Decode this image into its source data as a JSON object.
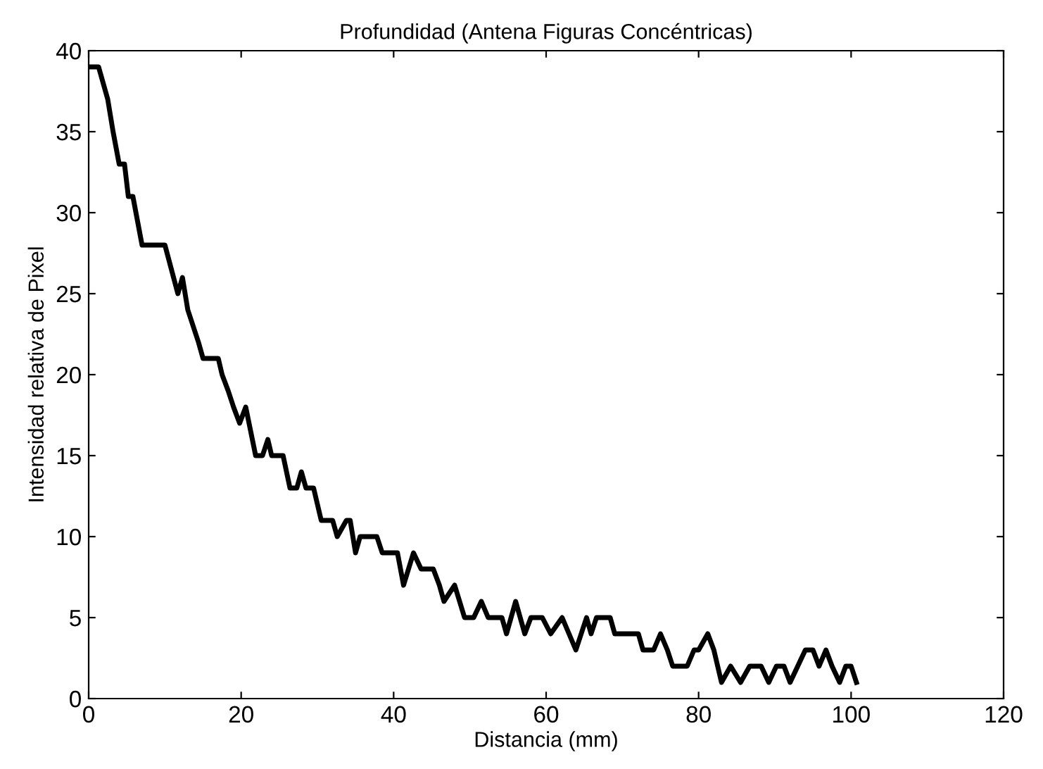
{
  "chart_data": {
    "type": "line",
    "title": "Profundidad (Antena Figuras Concéntricas)",
    "xlabel": "Distancia (mm)",
    "ylabel": "Intensidad relativa de Pixel",
    "series": [
      {
        "color": "#000000",
        "x": [
          0.4,
          1.3,
          1.9,
          2.5,
          3.2,
          4.0,
          4.7,
          5.2,
          5.8,
          7.0,
          10.0,
          11.7,
          12.3,
          13.0,
          14.4,
          15.0,
          17.0,
          17.5,
          18.3,
          19.0,
          19.8,
          20.6,
          21.9,
          22.8,
          23.5,
          24.0,
          25.5,
          26.4,
          27.3,
          27.9,
          28.5,
          29.5,
          30.5,
          32.0,
          32.6,
          33.8,
          34.3,
          35.0,
          35.6,
          37.8,
          38.5,
          40.5,
          41.3,
          42.6,
          43.6,
          45.2,
          46.0,
          46.6,
          48.0,
          49.3,
          50.5,
          51.5,
          52.4,
          54.2,
          54.8,
          56.0,
          57.2,
          58.0,
          59.5,
          60.6,
          62.1,
          63.0,
          63.9,
          65.3,
          65.9,
          66.6,
          68.4,
          69.0,
          72.1,
          72.7,
          74.1,
          75.0,
          75.9,
          76.6,
          78.5,
          79.4,
          80.0,
          81.2,
          82.0,
          83.0,
          84.2,
          85.5,
          86.7,
          88.2,
          89.2,
          90.2,
          91.2,
          92.0,
          93.0,
          94.0,
          95.0,
          95.8,
          96.7,
          97.5,
          98.5,
          99.3,
          100.0,
          100.7
        ],
        "values": [
          39,
          39,
          38,
          37,
          35,
          33,
          33,
          31,
          31,
          28,
          28,
          25,
          26,
          24,
          22,
          21,
          21,
          20,
          19,
          18,
          17,
          18,
          15,
          15,
          16,
          15,
          15,
          13,
          13,
          14,
          13,
          13,
          11,
          11,
          10,
          11,
          11,
          9,
          10,
          10,
          9,
          9,
          7,
          9,
          8,
          8,
          7,
          6,
          7,
          5,
          5,
          6,
          5,
          5,
          4,
          6,
          4,
          5,
          5,
          4,
          5,
          4,
          3,
          5,
          4,
          5,
          5,
          4,
          4,
          3,
          3,
          4,
          3,
          2,
          2,
          3,
          3,
          4,
          3,
          1,
          2,
          1,
          2,
          2,
          1,
          2,
          2,
          1,
          2,
          3,
          3,
          2,
          3,
          2,
          1,
          2,
          2,
          1
        ]
      }
    ],
    "xlim": [
      0,
      120
    ],
    "xticks": [
      0,
      20,
      40,
      60,
      80,
      100,
      120
    ],
    "ylim": [
      0,
      40
    ],
    "yticks": [
      0,
      5,
      10,
      15,
      20,
      25,
      30,
      35,
      40
    ],
    "grid": false,
    "legend": false,
    "marker": "none",
    "line_style": "solid"
  }
}
